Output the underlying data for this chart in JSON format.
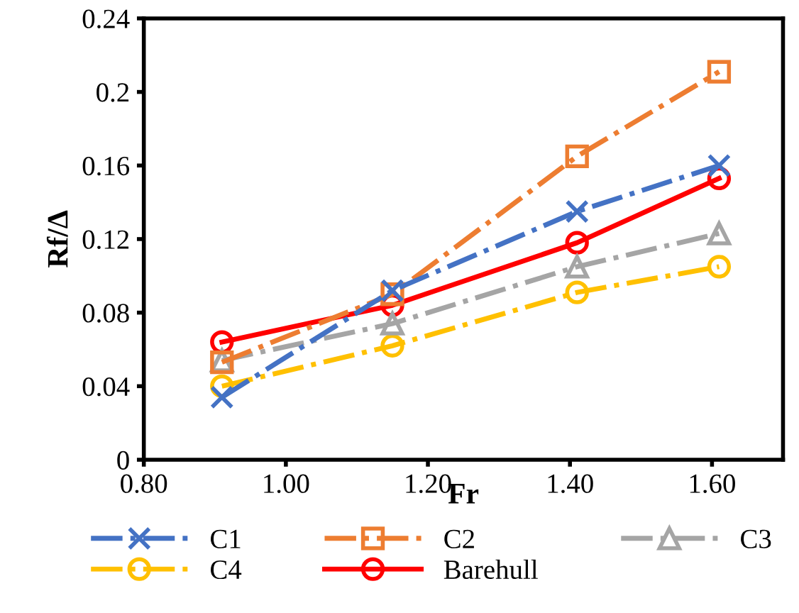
{
  "chart_data": {
    "type": "line",
    "xlabel": "Fr",
    "ylabel": "Rf/Δ",
    "x": [
      0.91,
      1.15,
      1.41,
      1.61
    ],
    "series": [
      {
        "name": "C1",
        "color": "#4472c4",
        "values": [
          0.034,
          0.092,
          0.135,
          0.16
        ],
        "marker": "cross",
        "line_style": "dashdot"
      },
      {
        "name": "C2",
        "color": "#ed7d31",
        "values": [
          0.053,
          0.09,
          0.165,
          0.211
        ],
        "marker": "square",
        "line_style": "dashdot"
      },
      {
        "name": "C3",
        "color": "#a5a5a5",
        "values": [
          0.054,
          0.074,
          0.105,
          0.123
        ],
        "marker": "triangle",
        "line_style": "dashdot"
      },
      {
        "name": "C4",
        "color": "#ffc000",
        "values": [
          0.04,
          0.062,
          0.091,
          0.105
        ],
        "marker": "circle",
        "line_style": "dashdot"
      },
      {
        "name": "Barehull",
        "color": "#ff0000",
        "values": [
          0.064,
          0.084,
          0.118,
          0.153
        ],
        "marker": "circle",
        "line_style": "solid"
      }
    ],
    "xlim": [
      0.8,
      1.7
    ],
    "xticks": [
      {
        "value": 0.8,
        "label": "0.80"
      },
      {
        "value": 1.0,
        "label": "1.00"
      },
      {
        "value": 1.2,
        "label": "1.20"
      },
      {
        "value": 1.4,
        "label": "1.40"
      },
      {
        "value": 1.6,
        "label": "1.60"
      }
    ],
    "ylim": [
      0,
      0.24
    ],
    "yticks": [
      0,
      0.04,
      0.08,
      0.12,
      0.16,
      0.2,
      0.24
    ],
    "grid": false,
    "legend": "bottom"
  }
}
